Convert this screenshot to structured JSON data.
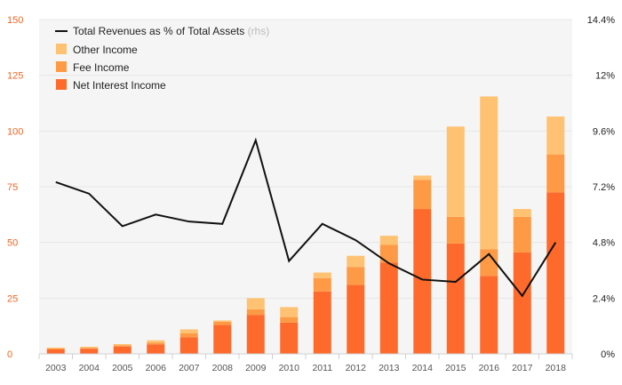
{
  "chart_data": {
    "type": "bar",
    "stacked": true,
    "categories": [
      "2003",
      "2004",
      "2005",
      "2006",
      "2007",
      "2008",
      "2009",
      "2010",
      "2011",
      "2012",
      "2013",
      "2014",
      "2015",
      "2016",
      "2017",
      "2018"
    ],
    "series": [
      {
        "name": "Net Interest Income",
        "color": "#fd6a2c",
        "values": [
          2,
          2.3,
          3.3,
          4.3,
          7.5,
          13,
          17.5,
          14,
          28,
          31,
          41,
          65,
          49.5,
          35,
          45.5,
          72.5
        ]
      },
      {
        "name": "Fee Income",
        "color": "#fe9a45",
        "values": [
          0.4,
          0.4,
          0.6,
          0.8,
          1.8,
          1.4,
          2.5,
          2.5,
          6,
          8,
          8,
          13,
          12,
          12,
          16,
          17
        ]
      },
      {
        "name": "Other Income",
        "color": "#fec272",
        "values": [
          0.4,
          0.5,
          0.5,
          1,
          1.7,
          0.6,
          5,
          4.5,
          2.5,
          5,
          4,
          2,
          40.5,
          68.5,
          3.5,
          17
        ]
      }
    ],
    "line": {
      "name": "Total Revenues as % of Total Assets",
      "note": "(rhs)",
      "color": "#111111",
      "axis": "right",
      "values": [
        7.4,
        6.9,
        5.5,
        6.0,
        5.7,
        5.6,
        9.2,
        4.0,
        5.6,
        4.9,
        3.9,
        3.2,
        3.1,
        4.3,
        2.5,
        4.8
      ]
    },
    "y_left": {
      "min": 0,
      "max": 150,
      "ticks": [
        "0",
        "25",
        "50",
        "75",
        "100",
        "125",
        "150"
      ],
      "color": "#f26522"
    },
    "y_right": {
      "min": 0,
      "max": 14.4,
      "ticks": [
        "0%",
        "2.4%",
        "4.8%",
        "7.2%",
        "9.6%",
        "12%",
        "14.4%"
      ]
    },
    "grid": true,
    "legend_position": "top-left"
  }
}
